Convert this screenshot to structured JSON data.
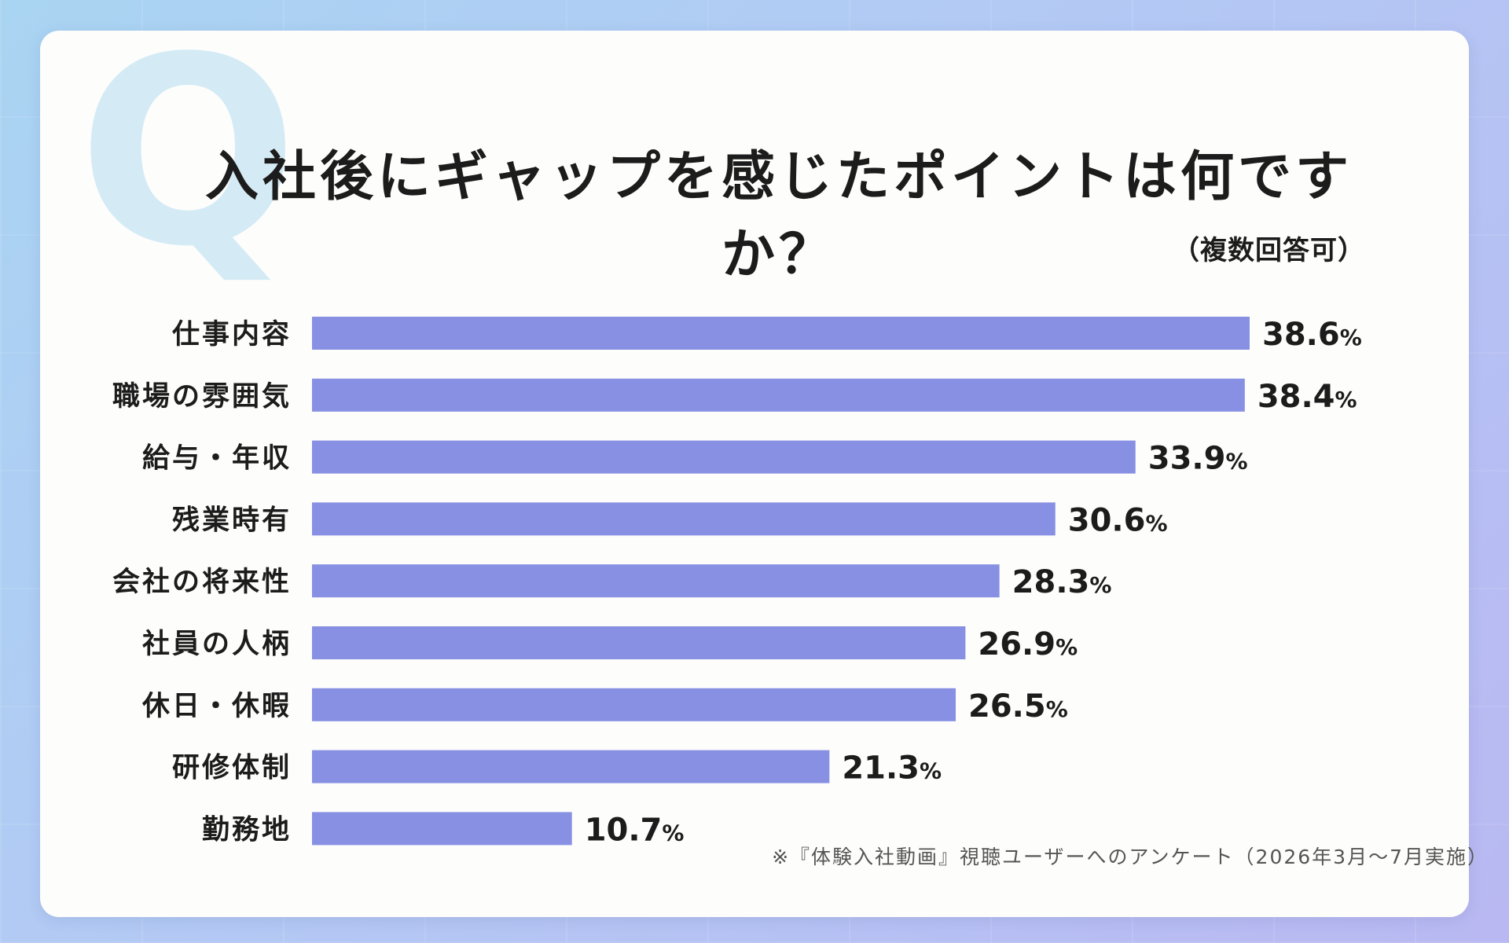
{
  "colors": {
    "bar": "#8790e3",
    "q_mark": "#d4ebf6",
    "card": "#fdfdfb",
    "text": "#1c1c1c"
  },
  "q_mark": "Q",
  "title": "入社後にギャップを感じたポイントは何ですか？",
  "subtitle": "（複数回答可）",
  "footnote": "※『体験入社動画』視聴ユーザーへのアンケート（2026年3月〜7月実施）",
  "chart_data": {
    "type": "bar",
    "orientation": "horizontal",
    "title": "入社後にギャップを感じたポイントは何ですか？",
    "subtitle": "（複数回答可）",
    "categories": [
      "仕事内容",
      "職場の雰囲気",
      "給与・年収",
      "残業時有",
      "会社の将来性",
      "社員の人柄",
      "休日・休暇",
      "研修体制",
      "勤務地"
    ],
    "values": [
      38.6,
      38.4,
      33.9,
      30.6,
      28.3,
      26.9,
      26.5,
      21.3,
      10.7
    ],
    "value_unit": "%",
    "xlim": [
      0,
      38.6
    ],
    "grid": false,
    "legend": "none"
  }
}
